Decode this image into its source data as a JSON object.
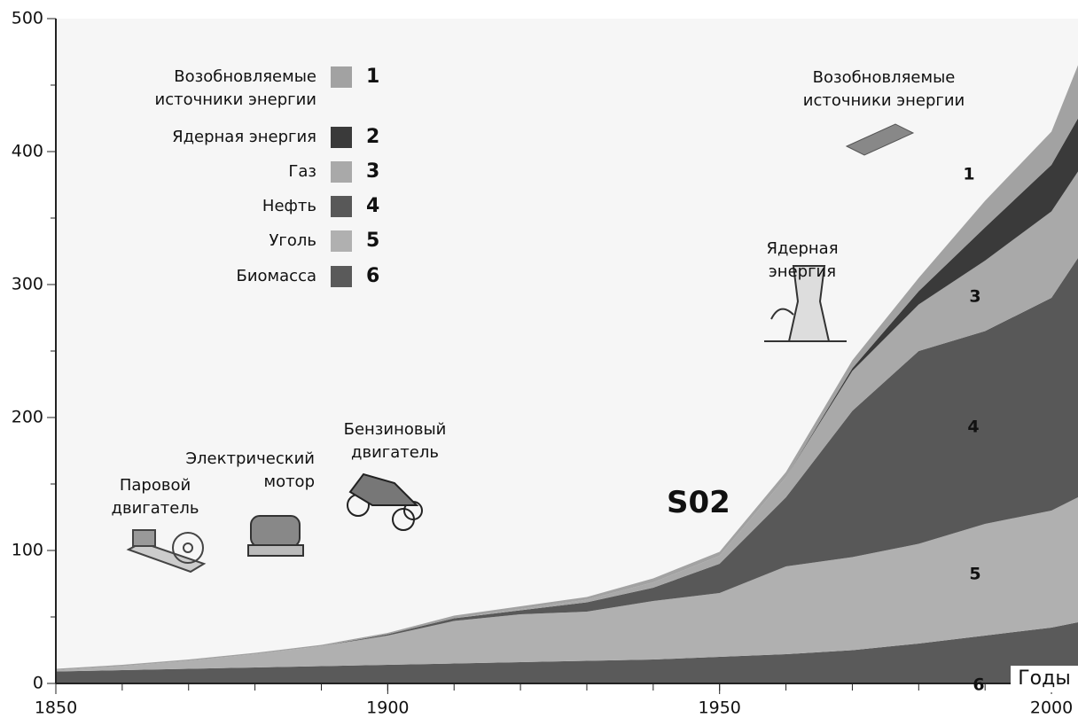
{
  "chart_data": {
    "type": "stacked-area",
    "x": [
      1850,
      1860,
      1870,
      1880,
      1890,
      1900,
      1910,
      1920,
      1930,
      1940,
      1950,
      1960,
      1970,
      1980,
      1990,
      2000,
      2004
    ],
    "xlim": [
      1850,
      2004
    ],
    "xticks": [
      1850,
      1900,
      1950,
      2000
    ],
    "xminor": 10,
    "ylim": [
      0,
      500
    ],
    "yticks": [
      0,
      100,
      200,
      300,
      400,
      500
    ],
    "yminor": 50,
    "series": [
      {
        "name": "Возобновляемые источники энергии",
        "label": "1",
        "color": "#a2a2a2",
        "values": [
          1,
          1,
          1,
          1,
          1,
          1,
          2,
          2,
          2,
          3,
          3,
          4,
          6,
          10,
          20,
          25,
          40
        ]
      },
      {
        "name": "Ядерная энергия",
        "label": "2",
        "color": "#3a3a3a",
        "values": [
          0,
          0,
          0,
          0,
          0,
          0,
          0,
          0,
          0,
          0,
          0,
          0,
          2,
          10,
          25,
          35,
          40
        ]
      },
      {
        "name": "Газ",
        "label": "3",
        "color": "#a9a9a9",
        "values": [
          0,
          0,
          0,
          0,
          0,
          0,
          0,
          1,
          2,
          4,
          6,
          15,
          30,
          35,
          53,
          65,
          65
        ]
      },
      {
        "name": "Нефть",
        "label": "4",
        "color": "#585858",
        "values": [
          0,
          0,
          0,
          0,
          0,
          1,
          2,
          3,
          7,
          10,
          22,
          52,
          110,
          145,
          145,
          160,
          180
        ]
      },
      {
        "name": "Уголь",
        "label": "5",
        "color": "#b0b0b0",
        "values": [
          1,
          3,
          6,
          10,
          15,
          22,
          32,
          36,
          37,
          44,
          48,
          66,
          70,
          75,
          84,
          88,
          94
        ]
      },
      {
        "name": "Биомасса",
        "label": "6",
        "color": "#5a5a5a",
        "values": [
          9,
          10,
          11,
          12,
          13,
          14,
          15,
          16,
          17,
          18,
          20,
          22,
          25,
          30,
          36,
          42,
          46
        ]
      }
    ],
    "annotations": [
      "Возобновляемые источники энергии",
      "Ядерная энергия",
      "Бензиновый двигатель",
      "Электрический мотор",
      "Паровой двигатель",
      "S02",
      "Годы"
    ]
  }
}
